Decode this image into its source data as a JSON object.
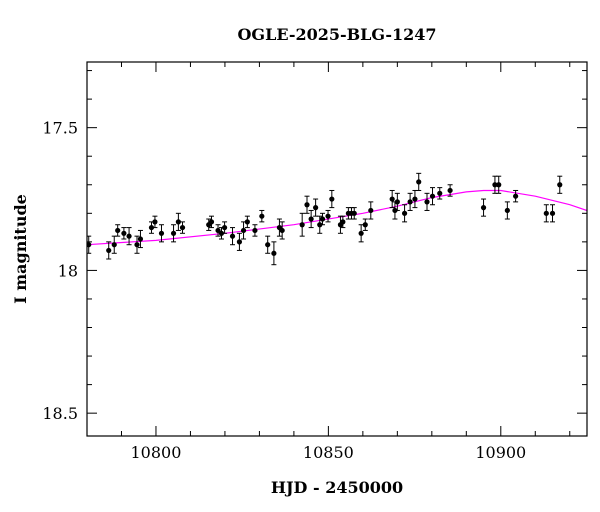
{
  "chart_data": {
    "type": "scatter",
    "title": "OGLE-2025-BLG-1247",
    "xlabel": "HJD - 2450000",
    "ylabel": "I magnitude",
    "xlim": [
      10780,
      10925
    ],
    "ylim": [
      18.58,
      17.27
    ],
    "y_inverted": true,
    "grid": false,
    "x_major_ticks": [
      10800,
      10850,
      10900
    ],
    "x_tick_labels": [
      "10800",
      "10850",
      "10900"
    ],
    "y_major_ticks": [
      17.5,
      18,
      18.5
    ],
    "y_tick_labels": [
      "17.5",
      "18",
      "18.5"
    ],
    "colors": {
      "points": "#000000",
      "model": "#ff00ff",
      "frame": "#000000"
    },
    "series": [
      {
        "type": "scatter_errorbars",
        "x": [
          10780.5,
          10786.3,
          10787.9,
          10788.9,
          10790.7,
          10792.2,
          10794.5,
          10795.5,
          10798.7,
          10799.7,
          10801.6,
          10805.1,
          10806.5,
          10807.7,
          10815.3,
          10816.1,
          10818.0,
          10819.0,
          10819.9,
          10822.2,
          10824.2,
          10825.4,
          10826.5,
          10828.7,
          10830.7,
          10832.4,
          10834.2,
          10835.8,
          10836.6,
          10842.4,
          10843.8,
          10845.0,
          10846.3,
          10847.5,
          10848.3,
          10849.9,
          10851.0,
          10853.5,
          10854.2,
          10855.8,
          10856.7,
          10857.5,
          10859.5,
          10860.7,
          10862.3,
          10868.5,
          10869.3,
          10870.0,
          10872.1,
          10873.7,
          10875.1,
          10876.2,
          10878.6,
          10880.2,
          10882.3,
          10885.3,
          10895.0,
          10898.3,
          10899.4,
          10901.9,
          10904.3,
          10913.2,
          10915.0,
          10917.1
        ],
        "y": [
          17.91,
          17.93,
          17.91,
          17.86,
          17.87,
          17.88,
          17.91,
          17.89,
          17.85,
          17.83,
          17.87,
          17.87,
          17.83,
          17.85,
          17.84,
          17.83,
          17.86,
          17.87,
          17.85,
          17.88,
          17.9,
          17.86,
          17.83,
          17.86,
          17.81,
          17.91,
          17.94,
          17.85,
          17.86,
          17.84,
          17.77,
          17.82,
          17.78,
          17.84,
          17.82,
          17.81,
          17.75,
          17.84,
          17.83,
          17.8,
          17.8,
          17.8,
          17.87,
          17.84,
          17.79,
          17.75,
          17.79,
          17.76,
          17.8,
          17.76,
          17.75,
          17.69,
          17.76,
          17.74,
          17.73,
          17.72,
          17.78,
          17.7,
          17.7,
          17.79,
          17.74,
          17.8,
          17.8,
          17.7
        ],
        "yerr": [
          0.03,
          0.03,
          0.03,
          0.02,
          0.02,
          0.03,
          0.03,
          0.03,
          0.02,
          0.02,
          0.03,
          0.03,
          0.03,
          0.02,
          0.02,
          0.02,
          0.02,
          0.02,
          0.02,
          0.03,
          0.03,
          0.03,
          0.02,
          0.02,
          0.02,
          0.03,
          0.04,
          0.03,
          0.03,
          0.04,
          0.03,
          0.03,
          0.03,
          0.03,
          0.02,
          0.02,
          0.03,
          0.03,
          0.02,
          0.02,
          0.02,
          0.02,
          0.03,
          0.02,
          0.03,
          0.03,
          0.03,
          0.03,
          0.03,
          0.03,
          0.03,
          0.03,
          0.03,
          0.03,
          0.02,
          0.02,
          0.03,
          0.03,
          0.03,
          0.03,
          0.02,
          0.03,
          0.03,
          0.03
        ]
      },
      {
        "type": "line",
        "x": [
          10780,
          10800,
          10820,
          10840,
          10860,
          10870,
          10880,
          10890,
          10895,
          10900,
          10910,
          10920,
          10925
        ],
        "y": [
          17.91,
          17.895,
          17.87,
          17.84,
          17.8,
          17.775,
          17.745,
          17.725,
          17.72,
          17.72,
          17.74,
          17.77,
          17.79
        ]
      }
    ]
  }
}
